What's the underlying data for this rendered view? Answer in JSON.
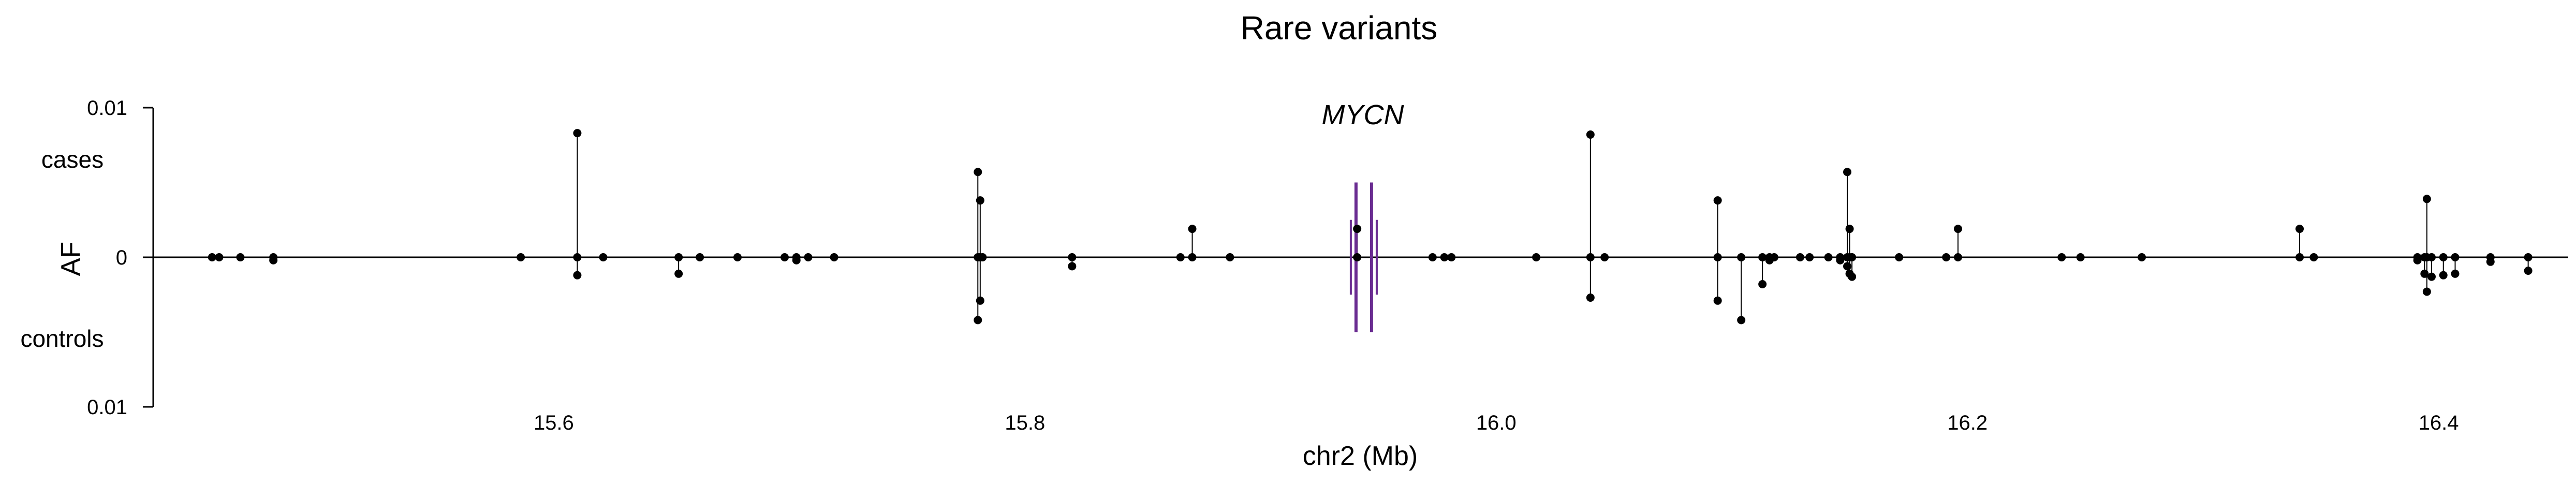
{
  "chart_data": {
    "type": "scatter",
    "title": "Rare variants",
    "xlabel": "chr2 (Mb)",
    "ylabel": "AF",
    "xlim": [
      15.43,
      16.455
    ],
    "ylim": [
      -0.01,
      0.01
    ],
    "x_ticks": [
      {
        "value": 15.6,
        "label": "15.6"
      },
      {
        "value": 15.8,
        "label": "15.8"
      },
      {
        "value": 16.0,
        "label": "16.0"
      },
      {
        "value": 16.2,
        "label": "16.2"
      },
      {
        "value": 16.4,
        "label": "16.4"
      }
    ],
    "y_ticks": [
      {
        "value": 0.01,
        "label": "0.01"
      },
      {
        "value": 0,
        "label": "0"
      },
      {
        "value": -0.01,
        "label": "0.01"
      }
    ],
    "group_labels": {
      "cases": "cases",
      "controls": "controls"
    },
    "gene": {
      "name": "MYCN",
      "start": 15.9405,
      "end": 15.9471,
      "color": "#6a2c91"
    },
    "grid": false,
    "legend": "none",
    "point_color": "#000000",
    "variants": [
      {
        "x": 15.455,
        "cases": 0,
        "controls": 0
      },
      {
        "x": 15.458,
        "cases": 0,
        "controls": 0
      },
      {
        "x": 15.467,
        "cases": 0,
        "controls": 0
      },
      {
        "x": 15.481,
        "cases": 0,
        "controls": -0.0002
      },
      {
        "x": 15.586,
        "cases": 0,
        "controls": 0
      },
      {
        "x": 15.61,
        "cases": 0.0083,
        "controls": -0.0012
      },
      {
        "x": 15.621,
        "cases": 0,
        "controls": 0
      },
      {
        "x": 15.653,
        "cases": 0,
        "controls": -0.0011
      },
      {
        "x": 15.662,
        "cases": 0,
        "controls": 0
      },
      {
        "x": 15.678,
        "cases": 0,
        "controls": 0
      },
      {
        "x": 15.698,
        "cases": 0,
        "controls": 0
      },
      {
        "x": 15.703,
        "cases": 0,
        "controls": -0.0002
      },
      {
        "x": 15.708,
        "cases": 0,
        "controls": 0
      },
      {
        "x": 15.719,
        "cases": 0,
        "controls": 0
      },
      {
        "x": 15.78,
        "cases": 0.0057,
        "controls": -0.0042
      },
      {
        "x": 15.781,
        "cases": 0.0038,
        "controls": -0.0029
      },
      {
        "x": 15.782,
        "cases": 0,
        "controls": 0
      },
      {
        "x": 15.82,
        "cases": 0,
        "controls": -0.0006
      },
      {
        "x": 15.866,
        "cases": 0,
        "controls": 0
      },
      {
        "x": 15.871,
        "cases": 0.0019,
        "controls": 0
      },
      {
        "x": 15.887,
        "cases": 0,
        "controls": 0
      },
      {
        "x": 15.941,
        "cases": 0.0019,
        "controls": 0
      },
      {
        "x": 15.973,
        "cases": 0,
        "controls": 0
      },
      {
        "x": 15.978,
        "cases": 0,
        "controls": 0
      },
      {
        "x": 15.981,
        "cases": 0,
        "controls": 0
      },
      {
        "x": 16.017,
        "cases": 0,
        "controls": 0
      },
      {
        "x": 16.04,
        "cases": 0.0082,
        "controls": -0.0027
      },
      {
        "x": 16.046,
        "cases": 0,
        "controls": 0
      },
      {
        "x": 16.094,
        "cases": 0.0038,
        "controls": -0.0029
      },
      {
        "x": 16.104,
        "cases": 0,
        "controls": -0.0042
      },
      {
        "x": 16.113,
        "cases": 0,
        "controls": -0.0018
      },
      {
        "x": 16.116,
        "cases": 0,
        "controls": -0.0002
      },
      {
        "x": 16.118,
        "cases": 0,
        "controls": 0
      },
      {
        "x": 16.129,
        "cases": 0,
        "controls": 0
      },
      {
        "x": 16.133,
        "cases": 0,
        "controls": 0
      },
      {
        "x": 16.141,
        "cases": 0,
        "controls": 0
      },
      {
        "x": 16.146,
        "cases": 0,
        "controls": -0.0002
      },
      {
        "x": 16.149,
        "cases": 0.0057,
        "controls": -0.0006
      },
      {
        "x": 16.15,
        "cases": 0.0019,
        "controls": -0.0011
      },
      {
        "x": 16.151,
        "cases": 0,
        "controls": -0.0013
      },
      {
        "x": 16.171,
        "cases": 0,
        "controls": 0
      },
      {
        "x": 16.191,
        "cases": 0,
        "controls": 0
      },
      {
        "x": 16.196,
        "cases": 0.0019,
        "controls": 0
      },
      {
        "x": 16.24,
        "cases": 0,
        "controls": 0
      },
      {
        "x": 16.248,
        "cases": 0,
        "controls": 0
      },
      {
        "x": 16.274,
        "cases": 0,
        "controls": 0
      },
      {
        "x": 16.341,
        "cases": 0.0019,
        "controls": 0
      },
      {
        "x": 16.347,
        "cases": 0,
        "controls": 0
      },
      {
        "x": 16.391,
        "cases": 0,
        "controls": -0.0002
      },
      {
        "x": 16.394,
        "cases": 0,
        "controls": -0.0011
      },
      {
        "x": 16.395,
        "cases": 0.0039,
        "controls": -0.0023
      },
      {
        "x": 16.397,
        "cases": 0,
        "controls": -0.0013
      },
      {
        "x": 16.402,
        "cases": 0,
        "controls": -0.0012
      },
      {
        "x": 16.407,
        "cases": 0,
        "controls": -0.0011
      },
      {
        "x": 16.422,
        "cases": 0,
        "controls": -0.0003
      },
      {
        "x": 16.438,
        "cases": 0,
        "controls": -0.0009
      }
    ]
  }
}
